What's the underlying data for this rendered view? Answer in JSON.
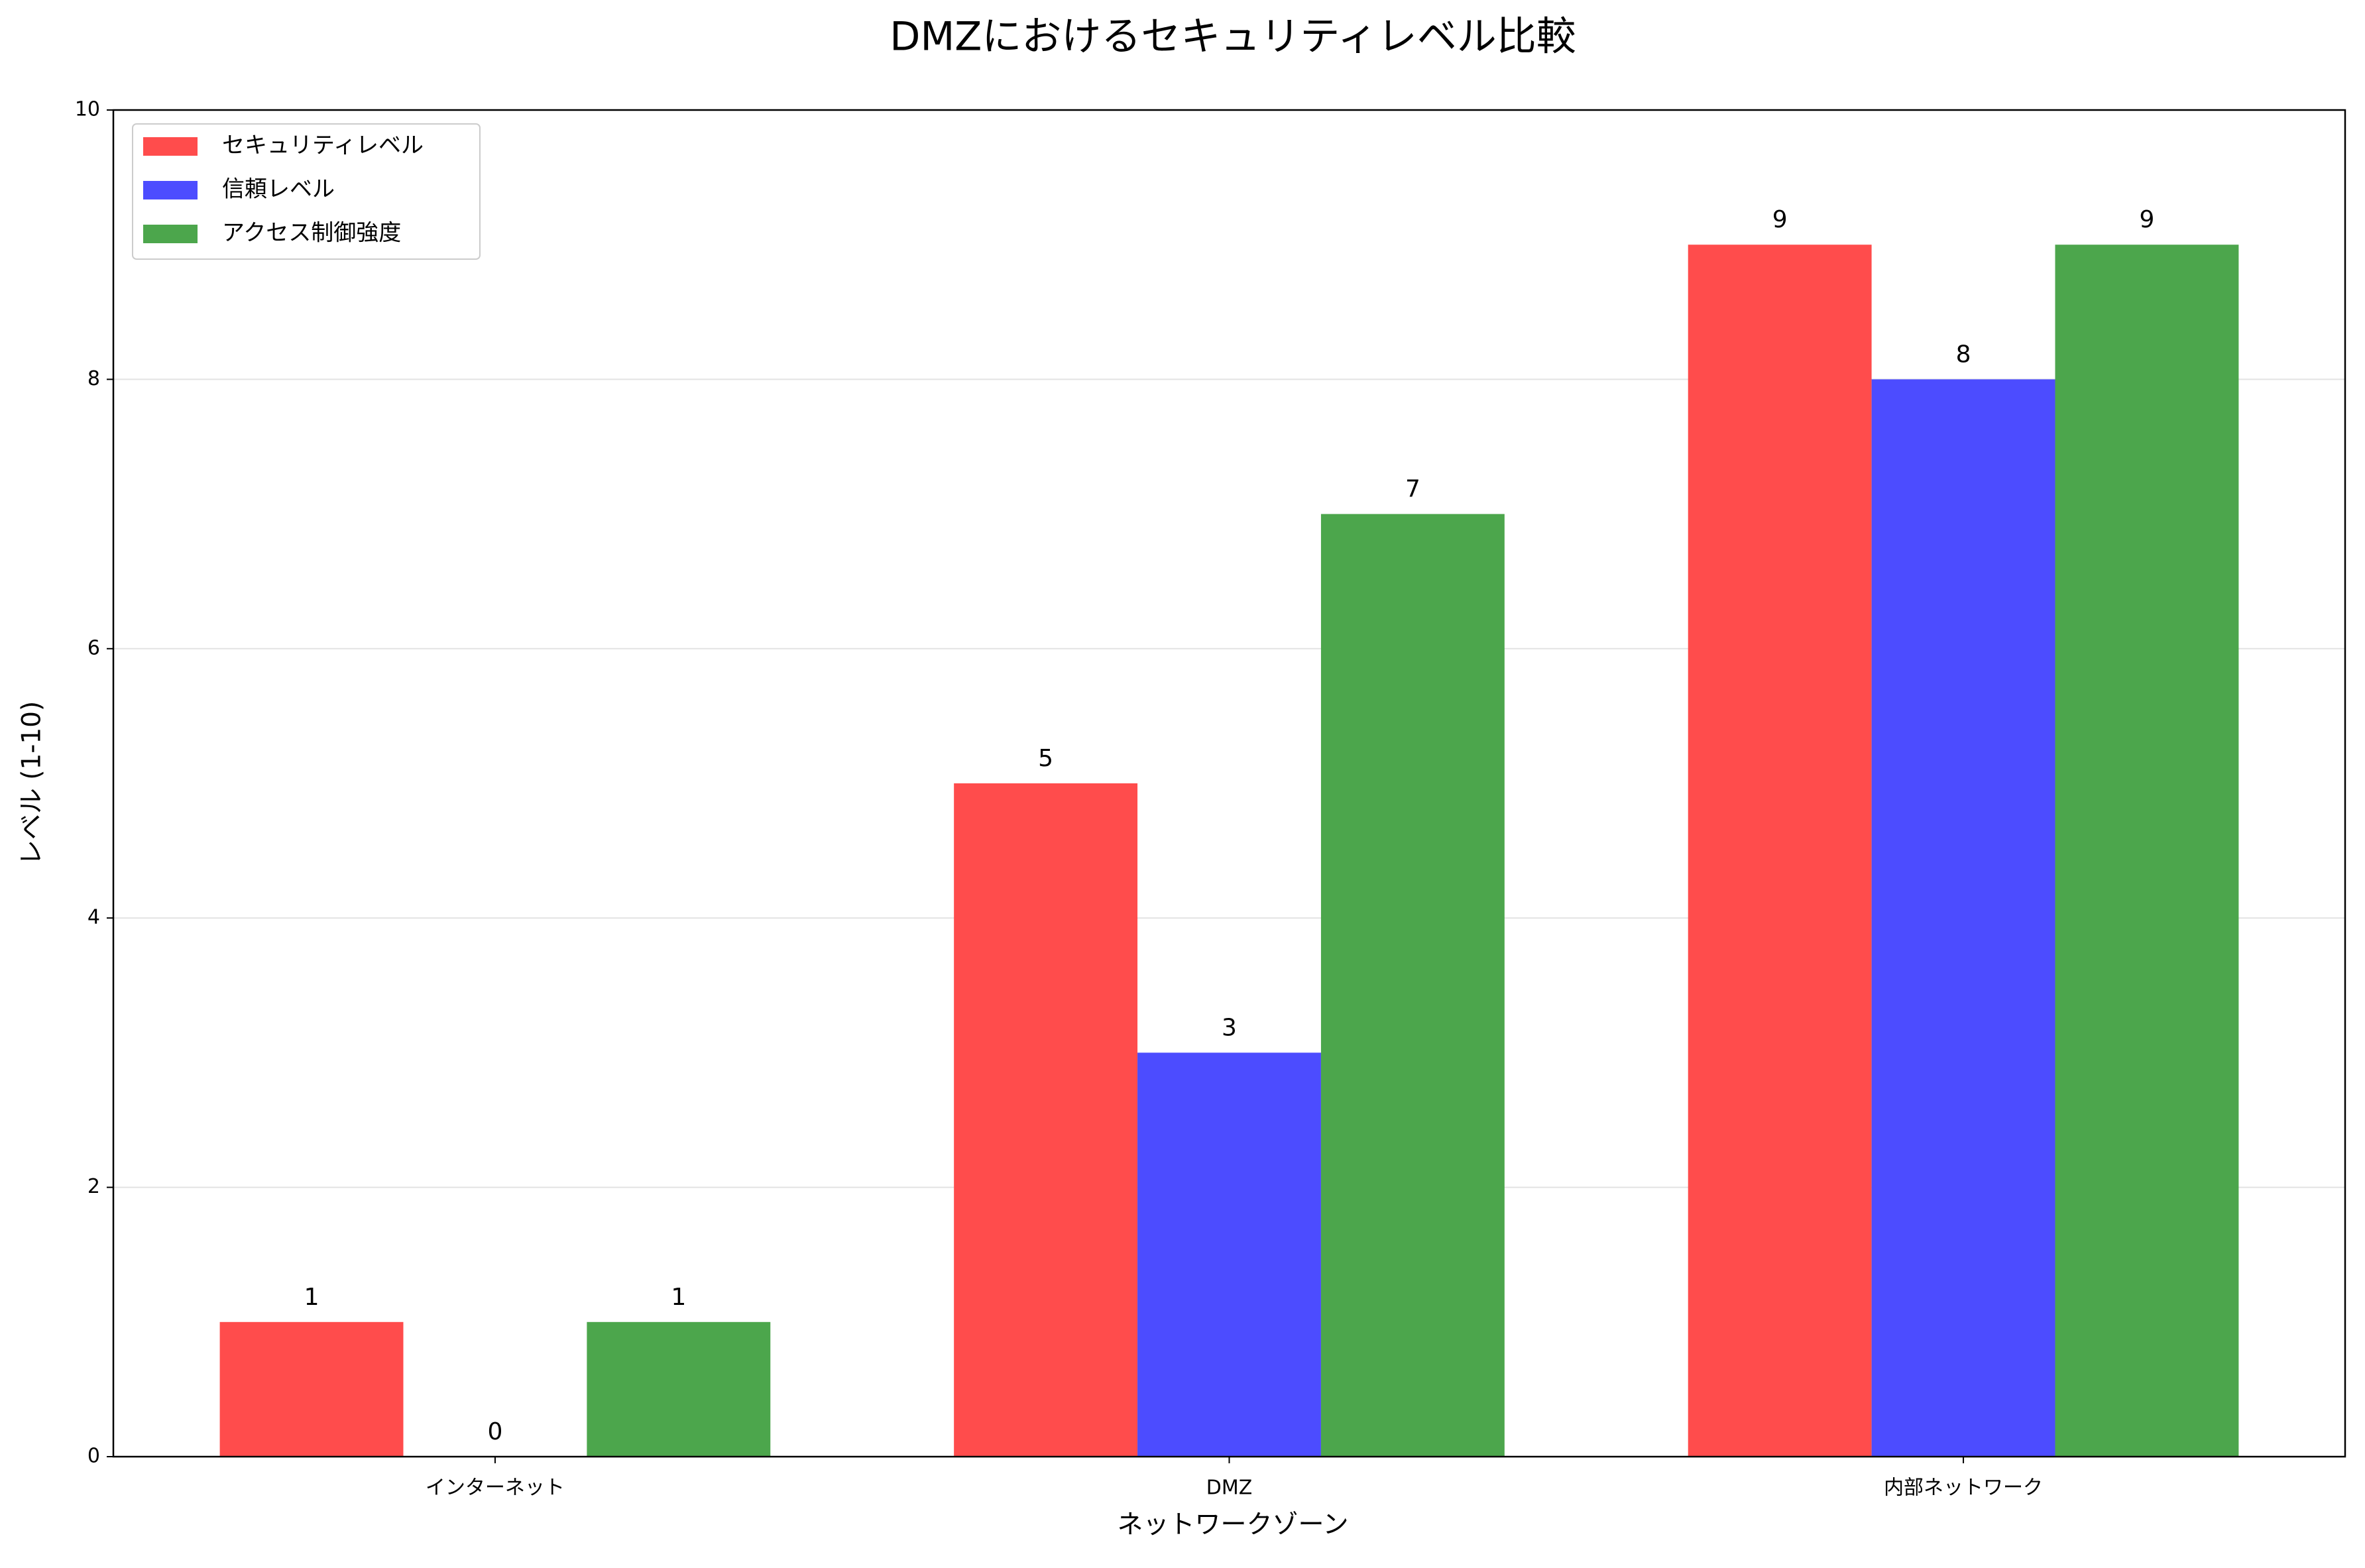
{
  "chart_data": {
    "type": "bar",
    "title": "DMZにおけるセキュリティレベル比較",
    "x_label": "ネットワークゾーン",
    "y_label": "レベル (1-10)",
    "categories": [
      "インターネット",
      "DMZ",
      "内部ネットワーク"
    ],
    "series": [
      {
        "name": "セキュリティレベル",
        "color": "#ff4c4c",
        "values": [
          1,
          5,
          9
        ]
      },
      {
        "name": "信頼レベル",
        "color": "#4c4cff",
        "values": [
          0,
          3,
          8
        ]
      },
      {
        "name": "アクセス制御強度",
        "color": "#4ca64c",
        "values": [
          1,
          7,
          9
        ]
      }
    ],
    "ylim": [
      0,
      10
    ],
    "yticks": [
      0,
      2,
      4,
      6,
      8,
      10
    ],
    "grid": true,
    "legend": "upper left"
  }
}
